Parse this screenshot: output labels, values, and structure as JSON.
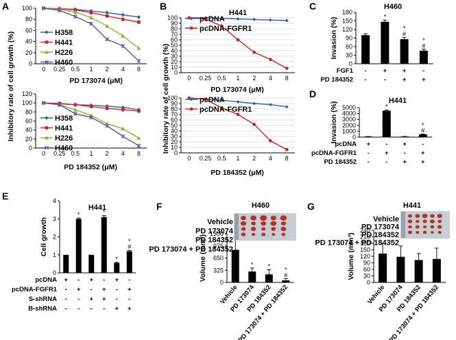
{
  "colors": {
    "H358": "#2e5fa8",
    "H441": "#c8252a",
    "H226": "#8bb43a",
    "H460": "#6d4a9a",
    "pcDNA": "#2e5fa8",
    "pcDNA-FGFR1": "#c8252a",
    "bar": "#000000",
    "photo_bg": "#c9cdd2",
    "tumor": "#b0302c"
  },
  "chart_data": [
    {
      "id": "A-top",
      "panel": "A",
      "type": "line",
      "title": "",
      "categories": [
        "0",
        "0.25",
        "0.5",
        "1",
        "2",
        "4",
        "8"
      ],
      "xlabel": "PD 173074 (μM)",
      "ylabel": "Inhibitory rate of cell growth (%)",
      "yticks": [
        "0",
        "20",
        "40",
        "60",
        "80",
        "100"
      ],
      "ylim": [
        0,
        100
      ],
      "series": [
        {
          "name": "H358",
          "values": [
            100,
            99,
            98,
            95,
            92,
            88,
            84
          ]
        },
        {
          "name": "H441",
          "values": [
            100,
            99,
            97,
            92,
            86,
            80,
            75
          ]
        },
        {
          "name": "H226",
          "values": [
            100,
            98,
            93,
            83,
            68,
            50,
            28
          ]
        },
        {
          "name": "H460",
          "values": [
            100,
            96,
            85,
            72,
            44,
            32,
            5
          ]
        }
      ]
    },
    {
      "id": "A-bottom",
      "panel": "",
      "type": "line",
      "title": "",
      "categories": [
        "0",
        "0.25",
        "0.5",
        "1",
        "2",
        "4",
        "8"
      ],
      "xlabel": "PD 184352 (μM)",
      "ylabel": "Inhibitory rate of cell growth (%)",
      "yticks": [
        "0",
        "20",
        "40",
        "60",
        "80",
        "100",
        "120"
      ],
      "ylim": [
        0,
        120
      ],
      "series": [
        {
          "name": "H358",
          "values": [
            100,
            98,
            96,
            95,
            93,
            90,
            85
          ]
        },
        {
          "name": "H441",
          "values": [
            100,
            99,
            96,
            92,
            88,
            85,
            82
          ]
        },
        {
          "name": "H226",
          "values": [
            100,
            96,
            85,
            72,
            54,
            43,
            22
          ]
        },
        {
          "name": "H460",
          "values": [
            100,
            96,
            76,
            68,
            49,
            26,
            5
          ]
        }
      ]
    },
    {
      "id": "B-top",
      "panel": "B",
      "type": "line",
      "title": "H441",
      "categories": [
        "0",
        "0.25",
        "0.5",
        "1",
        "2",
        "4",
        "8"
      ],
      "xlabel": "PD 173074 (μM)",
      "ylabel": "Inhibitory rate of cell growth (%)",
      "yticks": [
        "0",
        "10",
        "20",
        "30",
        "40",
        "50",
        "60",
        "70",
        "80",
        "90",
        "100"
      ],
      "ylim": [
        0,
        100
      ],
      "series": [
        {
          "name": "pcDNA",
          "values": [
            100,
            100,
            99,
            98,
            97,
            96,
            95
          ]
        },
        {
          "name": "pcDNA-FGFR1",
          "values": [
            100,
            98,
            85,
            60,
            37,
            24,
            8
          ]
        }
      ]
    },
    {
      "id": "B-bottom",
      "panel": "",
      "type": "line",
      "title": "",
      "categories": [
        "0",
        "0.25",
        "0.5",
        "1",
        "2",
        "4",
        "8"
      ],
      "xlabel": "PD 184352 (μM)",
      "ylabel": "Inhibitory rate of cell growth (%)",
      "yticks": [
        "0",
        "10",
        "20",
        "30",
        "40",
        "50",
        "60",
        "70",
        "80",
        "90",
        "100"
      ],
      "ylim": [
        0,
        100
      ],
      "series": [
        {
          "name": "pcDNA",
          "values": [
            100,
            98,
            96,
            93,
            90,
            88,
            84
          ]
        },
        {
          "name": "pcDNA-FGFR1",
          "values": [
            100,
            98,
            82,
            70,
            52,
            22,
            6
          ]
        }
      ]
    },
    {
      "id": "C",
      "panel": "C",
      "type": "bar",
      "title": "H460",
      "ylabel": "Invasion (%)",
      "yticks": [
        "0",
        "30",
        "60",
        "90",
        "120",
        "150",
        "180"
      ],
      "ylim": [
        0,
        180
      ],
      "values": [
        100,
        147,
        86,
        46
      ],
      "errors": [
        5,
        6,
        6,
        5
      ],
      "annotations": [
        "",
        "*",
        "*\n#",
        "*\n#"
      ],
      "groups": [
        {
          "label": "FGF1",
          "signs": [
            "-",
            "+",
            "+",
            "-"
          ]
        },
        {
          "label": "PD 184352",
          "signs": [
            "-",
            "-",
            "+",
            "+"
          ]
        }
      ]
    },
    {
      "id": "D",
      "panel": "D",
      "type": "bar",
      "title": "H441",
      "ylabel": "Invasion (%)",
      "yticks": [
        "0",
        "1000",
        "2000",
        "3000",
        "4000",
        "5000"
      ],
      "ylim": [
        0,
        5000
      ],
      "values": [
        100,
        4480,
        100,
        460
      ],
      "errors": [
        15,
        120,
        15,
        60
      ],
      "annotations": [
        "",
        "*",
        "",
        "*\n#"
      ],
      "groups": [
        {
          "label": "pcDNA",
          "signs": [
            "+",
            "-",
            "+",
            "-"
          ]
        },
        {
          "label": "pcDNA-FGFR1",
          "signs": [
            "-",
            "+",
            "-",
            "+"
          ]
        },
        {
          "label": "PD 184352",
          "signs": [
            "-",
            "-",
            "+",
            "+"
          ]
        }
      ]
    },
    {
      "id": "E",
      "panel": "E",
      "type": "bar",
      "title": "H441",
      "ylabel": "Cell growth",
      "yticks": [
        "0",
        "1",
        "2",
        "3",
        "4"
      ],
      "ylim": [
        0,
        4
      ],
      "values": [
        1.0,
        3.0,
        1.0,
        3.1,
        0.55,
        1.2
      ],
      "errors": [
        0,
        0.05,
        0,
        0.08,
        0.03,
        0.05
      ],
      "annotations": [
        "",
        "*",
        "",
        "*",
        "*",
        "*\n#"
      ],
      "groups": [
        {
          "label": "pcDNA",
          "signs": [
            "+",
            "-",
            "+",
            "-",
            "+",
            "-"
          ]
        },
        {
          "label": "pcDNA-FGFR1",
          "signs": [
            "-",
            "+",
            "-",
            "+",
            "-",
            "+"
          ]
        },
        {
          "label": "S-shRNA",
          "signs": [
            "-",
            "-",
            "+",
            "+",
            "-",
            "-"
          ]
        },
        {
          "label": "B-shRNA",
          "signs": [
            "-",
            "-",
            "-",
            "-",
            "+",
            "+"
          ]
        }
      ]
    },
    {
      "id": "F",
      "panel": "F",
      "type": "bar",
      "title": "H460",
      "ylabel": "Volume (mm³)",
      "yticks": [
        "0",
        "325",
        "650",
        "975",
        "1300"
      ],
      "ylim": [
        0,
        1300
      ],
      "categories": [
        "Vehicle",
        "PD 173074",
        "PD 184352",
        "PD 173074 + PD 184352"
      ],
      "values": [
        870,
        290,
        215,
        55
      ],
      "errors": [
        340,
        95,
        125,
        45
      ],
      "annotations": [
        "",
        "*",
        "*",
        "*\n#"
      ],
      "photo_labels": [
        "Vehicle",
        "PD 173074",
        "PD 184352",
        "PD 173074 + PD 184352"
      ]
    },
    {
      "id": "G",
      "panel": "G",
      "type": "bar",
      "title": "H441",
      "ylabel": "Volume (mm³)",
      "yticks": [
        "0",
        "30",
        "60",
        "90",
        "120",
        "150",
        "180",
        "210",
        "240"
      ],
      "ylim": [
        0,
        240
      ],
      "categories": [
        "Vehicle",
        "PD 173074",
        "PD 184352",
        "PD 173074 + PD 184352"
      ],
      "values": [
        133,
        118,
        103,
        108
      ],
      "errors": [
        45,
        50,
        30,
        50
      ],
      "annotations": [
        "",
        "",
        "",
        ""
      ],
      "photo_labels": [
        "Vehicle",
        "PD 173074",
        "PD 184352",
        "PD 173074 + PD 184352"
      ]
    }
  ]
}
